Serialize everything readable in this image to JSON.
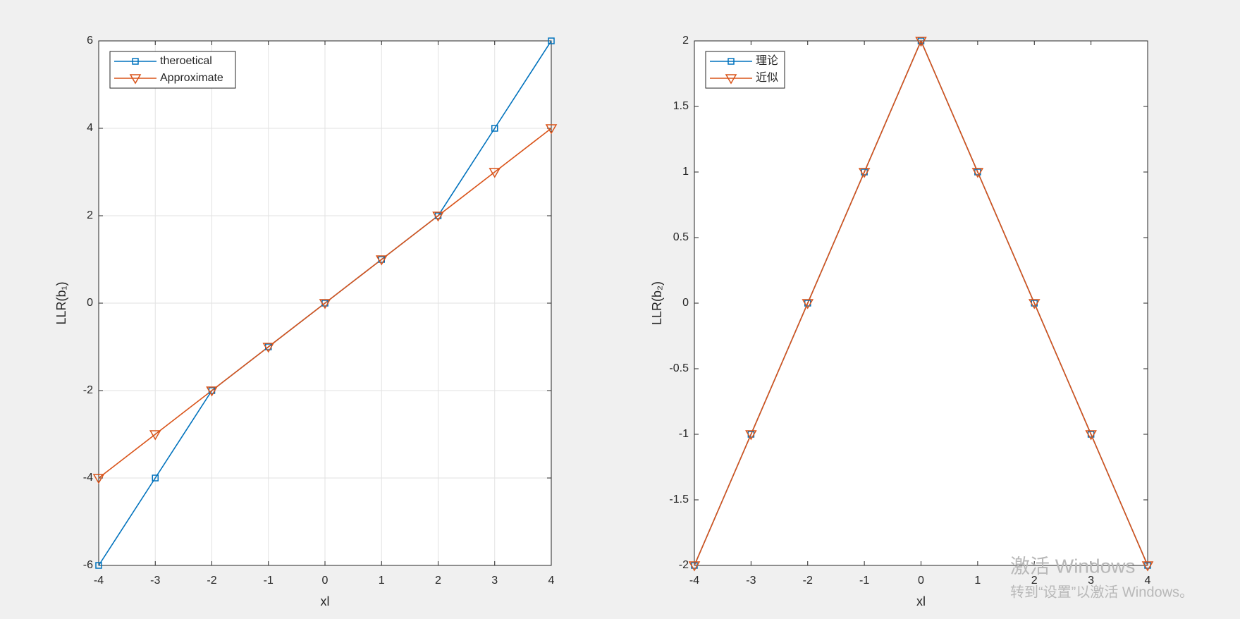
{
  "chart_data": [
    {
      "type": "line",
      "xlabel": "xl",
      "ylabel": "LLR(b₁)",
      "x": [
        -4,
        -3,
        -2,
        -1,
        0,
        1,
        2,
        3,
        4
      ],
      "series": [
        {
          "name": "theroetical",
          "color": "#0072BD",
          "marker": "square",
          "values": [
            -6,
            -4,
            -2,
            -1,
            0,
            1,
            2,
            4,
            6
          ]
        },
        {
          "name": "Approximate",
          "color": "#D95319",
          "marker": "triangle-down",
          "values": [
            -4,
            -3,
            -2,
            -1,
            0,
            1,
            2,
            3,
            4
          ]
        }
      ],
      "xlim": [
        -4,
        4
      ],
      "xticks": [
        -4,
        -3,
        -2,
        -1,
        0,
        1,
        2,
        3,
        4
      ],
      "ylim": [
        -6,
        6
      ],
      "yticks": [
        -6,
        -4,
        -2,
        0,
        2,
        4,
        6
      ],
      "grid": true,
      "legend": "northwest"
    },
    {
      "type": "line",
      "xlabel": "xl",
      "ylabel": "LLR(b₂)",
      "x": [
        -4,
        -3,
        -2,
        -1,
        0,
        1,
        2,
        3,
        4
      ],
      "series": [
        {
          "name": "理论",
          "color": "#0072BD",
          "marker": "square",
          "values": [
            -2,
            -1,
            0,
            1,
            2,
            1,
            0,
            -1,
            -2
          ]
        },
        {
          "name": "近似",
          "color": "#D95319",
          "marker": "triangle-down",
          "values": [
            -2,
            -1,
            0,
            1,
            2,
            1,
            0,
            -1,
            -2
          ]
        }
      ],
      "xlim": [
        -4,
        4
      ],
      "xticks": [
        -4,
        -3,
        -2,
        -1,
        0,
        1,
        2,
        3,
        4
      ],
      "ylim": [
        -2,
        2
      ],
      "yticks": [
        -2,
        -1.5,
        -1,
        -0.5,
        0,
        0.5,
        1,
        1.5,
        2
      ],
      "grid": false,
      "legend": "northwest"
    }
  ],
  "watermark": {
    "title": "激活 Windows",
    "subtitle": "转到“设置”以激活 Windows。"
  }
}
